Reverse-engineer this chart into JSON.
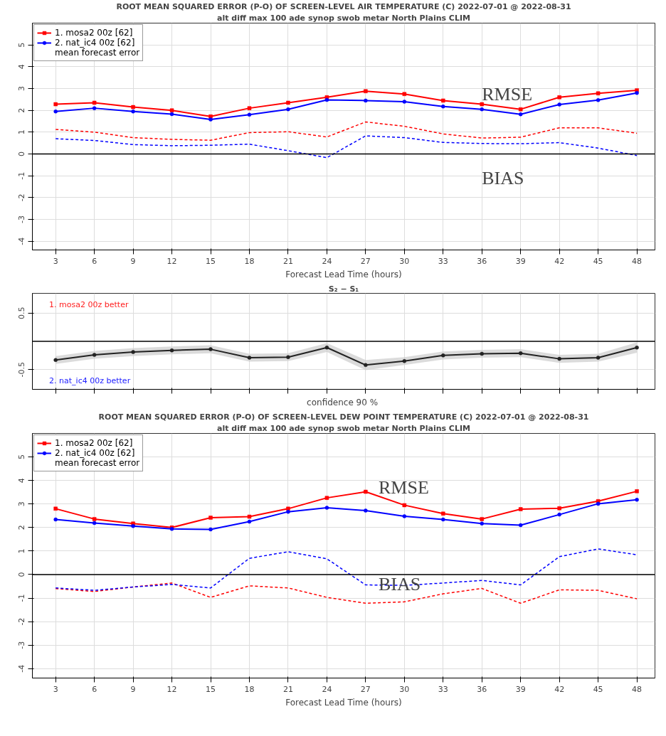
{
  "chart_data": [
    {
      "type": "line",
      "title": "ROOT MEAN SQUARED ERROR (P-O) OF SCREEN-LEVEL AIR TEMPERATURE (C) 2022-07-01 @ 2022-08-31",
      "subtitle": "alt diff max 100 ade synop swob metar North Plains CLIM",
      "xlabel": "Forecast Lead Time (hours)",
      "x": [
        3,
        6,
        9,
        12,
        15,
        18,
        21,
        24,
        27,
        30,
        33,
        36,
        39,
        42,
        45,
        48
      ],
      "xlim": [
        1.2,
        49.4
      ],
      "xticks": [
        3,
        6,
        9,
        12,
        15,
        18,
        21,
        24,
        27,
        30,
        33,
        36,
        39,
        42,
        45,
        48
      ],
      "ylim": [
        -4.4,
        6
      ],
      "yticks": [
        -4,
        -3,
        -2,
        -1,
        0,
        1,
        2,
        3,
        4,
        5
      ],
      "grid": true,
      "legend": "top left",
      "series": [
        {
          "name": "1. mosa2 00z [62]",
          "color": "#ff0000",
          "marker": "square",
          "line_style": "solid",
          "values": [
            2.28,
            2.35,
            2.15,
            2.0,
            1.72,
            2.1,
            2.35,
            2.6,
            2.88,
            2.75,
            2.45,
            2.28,
            2.05,
            2.6,
            2.78,
            2.92
          ]
        },
        {
          "name": "2. nat_ic4 00z [62]",
          "color": "#0000ff",
          "marker": "circle",
          "line_style": "solid",
          "values": [
            1.95,
            2.1,
            1.95,
            1.83,
            1.58,
            1.8,
            2.05,
            2.48,
            2.45,
            2.4,
            2.18,
            2.05,
            1.82,
            2.27,
            2.47,
            2.8
          ]
        },
        {
          "color": "#ff0000",
          "marker": "none",
          "line_style": "dotted",
          "values": [
            1.13,
            1.0,
            0.75,
            0.67,
            0.63,
            0.98,
            1.02,
            0.78,
            1.47,
            1.27,
            0.92,
            0.73,
            0.77,
            1.2,
            1.2,
            0.95
          ]
        },
        {
          "color": "#0000ff",
          "marker": "none",
          "line_style": "dotted",
          "values": [
            0.7,
            0.62,
            0.43,
            0.38,
            0.4,
            0.45,
            0.15,
            -0.17,
            0.83,
            0.75,
            0.53,
            0.48,
            0.47,
            0.52,
            0.27,
            -0.07
          ]
        }
      ],
      "ref_lines": [
        {
          "axis": "y",
          "value": 0,
          "color": "#000000"
        }
      ],
      "annotations": [
        "mean forecast error",
        "RMSE",
        "BIAS"
      ]
    },
    {
      "type": "line",
      "title": "S₂ − S₁",
      "xlabel": "confidence  90 %",
      "x": [
        3,
        6,
        9,
        12,
        15,
        18,
        21,
        24,
        27,
        30,
        33,
        36,
        39,
        42,
        45,
        48
      ],
      "xlim": [
        1.2,
        49.4
      ],
      "xticks": [
        {
          "value": 3,
          "label": null
        },
        {
          "value": 6,
          "label": null
        },
        {
          "value": 9,
          "label": null
        },
        {
          "value": 12,
          "label": null
        },
        {
          "value": 15,
          "label": null
        },
        {
          "value": 18,
          "label": null
        },
        {
          "value": 21,
          "label": null
        },
        {
          "value": 24,
          "label": null
        },
        {
          "value": 27,
          "label": null
        },
        {
          "value": 30,
          "label": null
        },
        {
          "value": 33,
          "label": null
        },
        {
          "value": 36,
          "label": null
        },
        {
          "value": 39,
          "label": null
        },
        {
          "value": 42,
          "label": null
        },
        {
          "value": 45,
          "label": null
        },
        {
          "value": 48,
          "label": null
        }
      ],
      "ylim": [
        -0.85,
        0.85
      ],
      "yticks": [
        -0.5,
        0.5
      ],
      "grid": true,
      "tick_labels": "y",
      "series": [
        {
          "color": "#222222",
          "marker": "circle",
          "line_style": "solid",
          "values": [
            -0.33,
            -0.24,
            -0.19,
            -0.16,
            -0.14,
            -0.29,
            -0.28,
            -0.11,
            -0.42,
            -0.35,
            -0.25,
            -0.22,
            -0.21,
            -0.31,
            -0.29,
            -0.11
          ],
          "lower": [
            -0.4,
            -0.31,
            -0.26,
            -0.23,
            -0.21,
            -0.36,
            -0.35,
            -0.19,
            -0.51,
            -0.42,
            -0.32,
            -0.29,
            -0.28,
            -0.38,
            -0.36,
            -0.2
          ],
          "upper": [
            -0.26,
            -0.17,
            -0.12,
            -0.09,
            -0.07,
            -0.22,
            -0.21,
            -0.03,
            -0.33,
            -0.28,
            -0.18,
            -0.15,
            -0.14,
            -0.24,
            -0.22,
            -0.02
          ]
        }
      ],
      "ref_lines": [
        {
          "axis": "y",
          "value": 0,
          "color": "#000000"
        }
      ],
      "annotations": [
        "1. mosa2 00z  better",
        "2. nat_ic4 00z  better"
      ]
    },
    {
      "type": "line",
      "title": "ROOT MEAN SQUARED ERROR (P-O) OF SCREEN-LEVEL DEW POINT TEMPERATURE (C) 2022-07-01 @ 2022-08-31",
      "subtitle": "alt diff max 100 ade synop swob metar North Plains CLIM",
      "xlabel": "Forecast Lead Time (hours)",
      "x": [
        3,
        6,
        9,
        12,
        15,
        18,
        21,
        24,
        27,
        30,
        33,
        36,
        39,
        42,
        45,
        48
      ],
      "xlim": [
        1.2,
        49.4
      ],
      "xticks": [
        3,
        6,
        9,
        12,
        15,
        18,
        21,
        24,
        27,
        30,
        33,
        36,
        39,
        42,
        45,
        48
      ],
      "ylim": [
        -4.4,
        6
      ],
      "yticks": [
        -4,
        -3,
        -2,
        -1,
        0,
        1,
        2,
        3,
        4,
        5
      ],
      "grid": true,
      "legend": "top left",
      "series": [
        {
          "name": "1. mosa2 00z [62]",
          "color": "#ff0000",
          "marker": "square",
          "line_style": "solid",
          "values": [
            2.8,
            2.36,
            2.17,
            2.0,
            2.42,
            2.46,
            2.8,
            3.26,
            3.52,
            2.95,
            2.59,
            2.36,
            2.78,
            2.82,
            3.12,
            3.54
          ]
        },
        {
          "name": "2. nat_ic4 00z [62]",
          "color": "#0000ff",
          "marker": "circle",
          "line_style": "solid",
          "values": [
            2.34,
            2.19,
            2.06,
            1.94,
            1.92,
            2.25,
            2.67,
            2.84,
            2.72,
            2.48,
            2.34,
            2.17,
            2.1,
            2.55,
            3.01,
            3.18
          ]
        },
        {
          "color": "#ff0000",
          "marker": "none",
          "line_style": "dotted",
          "values": [
            -0.6,
            -0.72,
            -0.53,
            -0.36,
            -0.97,
            -0.48,
            -0.57,
            -0.97,
            -1.22,
            -1.16,
            -0.82,
            -0.59,
            -1.22,
            -0.65,
            -0.67,
            -1.03
          ]
        },
        {
          "color": "#0000ff",
          "marker": "none",
          "line_style": "dotted",
          "values": [
            -0.57,
            -0.67,
            -0.53,
            -0.42,
            -0.57,
            0.69,
            0.97,
            0.67,
            -0.44,
            -0.46,
            -0.36,
            -0.25,
            -0.44,
            0.76,
            1.09,
            0.84
          ]
        }
      ],
      "ref_lines": [
        {
          "axis": "y",
          "value": 0,
          "color": "#000000"
        }
      ],
      "annotations": [
        "mean forecast error",
        "RMSE",
        "BIAS"
      ]
    }
  ]
}
